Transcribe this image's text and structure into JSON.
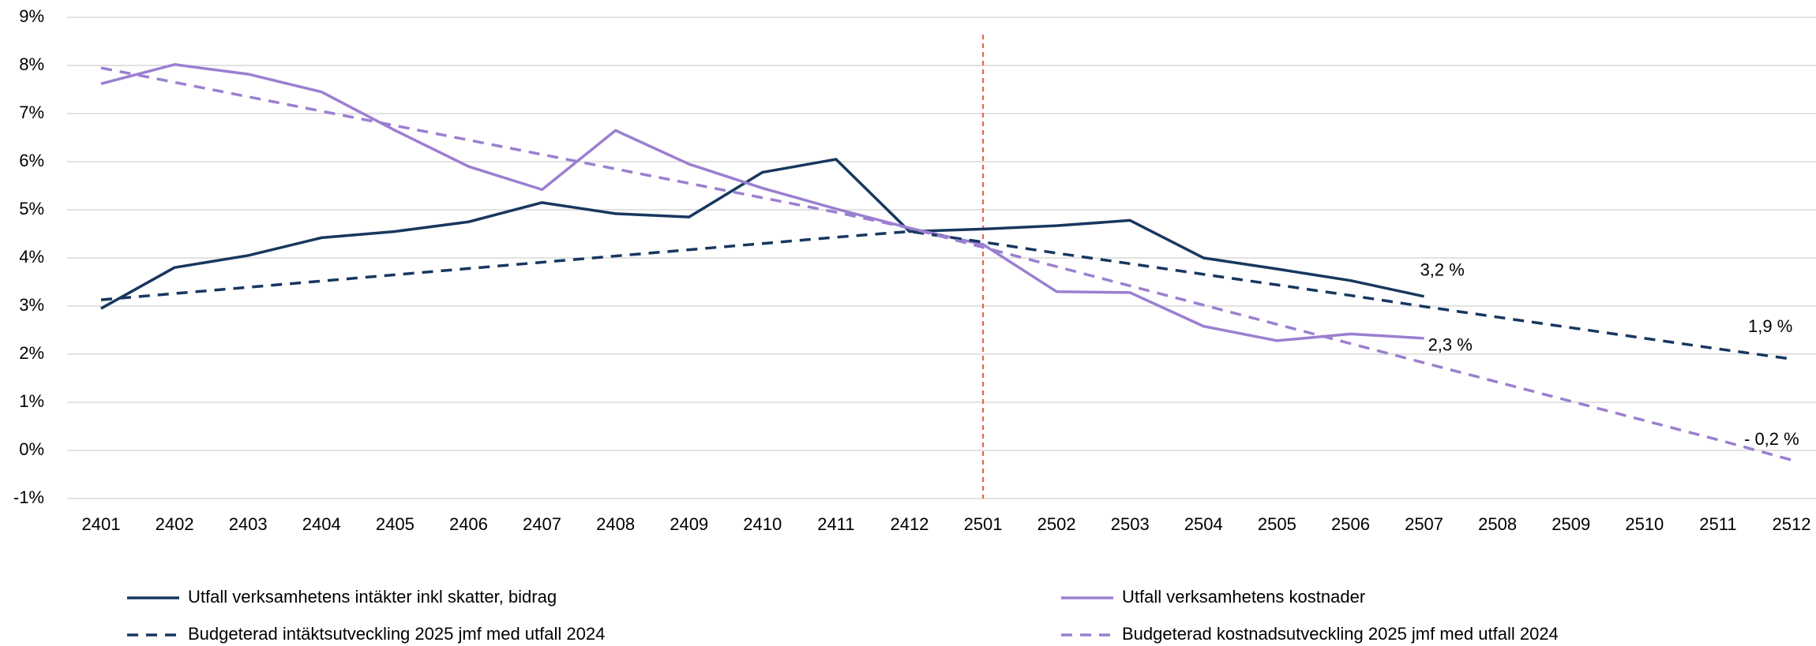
{
  "chart_data": {
    "type": "line",
    "categories": [
      "2401",
      "2402",
      "2403",
      "2404",
      "2405",
      "2406",
      "2407",
      "2408",
      "2409",
      "2410",
      "2411",
      "2412",
      "2501",
      "2502",
      "2503",
      "2504",
      "2505",
      "2506",
      "2507",
      "2508",
      "2509",
      "2510",
      "2511",
      "2512"
    ],
    "series": [
      {
        "name": "Utfall verksamhetens intäkter inkl skatter, bidrag",
        "color": "#17375e",
        "dashed": false,
        "values": [
          2.95,
          3.8,
          4.05,
          4.42,
          4.55,
          4.75,
          5.15,
          4.92,
          4.85,
          5.78,
          6.05,
          4.55,
          4.6,
          4.67,
          4.78,
          4.0,
          3.77,
          3.53,
          3.2,
          null,
          null,
          null,
          null,
          null
        ],
        "value_labels": [
          null,
          null,
          null,
          null,
          null,
          null,
          null,
          null,
          null,
          null,
          null,
          null,
          null,
          null,
          null,
          null,
          null,
          null,
          "3,2 %",
          null,
          null,
          null,
          null,
          null
        ]
      },
      {
        "name": "Utfall verksamhetens kostnader",
        "color": "#9b7fd0",
        "dashed": false,
        "values": [
          7.62,
          8.02,
          7.82,
          7.45,
          6.65,
          5.9,
          5.42,
          6.65,
          5.95,
          5.45,
          5.02,
          4.62,
          4.28,
          3.3,
          3.28,
          2.58,
          2.28,
          2.42,
          2.33,
          null,
          null,
          null,
          null,
          null
        ],
        "value_labels": [
          null,
          null,
          null,
          null,
          null,
          null,
          null,
          null,
          null,
          null,
          null,
          null,
          null,
          null,
          null,
          null,
          null,
          null,
          "2,3 %",
          null,
          null,
          null,
          null,
          null
        ]
      },
      {
        "name": "Budgeterad intäktsutveckling 2025 jmf med utfall 2024",
        "color": "#17375e",
        "dashed": true,
        "values": [
          3.13,
          3.26,
          3.39,
          3.52,
          3.65,
          3.78,
          3.91,
          4.04,
          4.17,
          4.3,
          4.43,
          4.55,
          4.33,
          4.1,
          3.88,
          3.66,
          3.44,
          3.22,
          2.99,
          2.77,
          2.55,
          2.33,
          2.11,
          1.9
        ],
        "value_labels": [
          null,
          null,
          null,
          null,
          null,
          null,
          null,
          null,
          null,
          null,
          null,
          null,
          null,
          null,
          null,
          null,
          null,
          null,
          null,
          null,
          null,
          null,
          null,
          "1,9 %"
        ]
      },
      {
        "name": "Budgeterad kostnadsutveckling 2025 jmf med utfall 2024",
        "color": "#9b7fd0",
        "dashed": true,
        "values": [
          7.95,
          7.65,
          7.35,
          7.05,
          6.75,
          6.45,
          6.15,
          5.85,
          5.55,
          5.25,
          4.95,
          4.62,
          4.22,
          3.82,
          3.42,
          3.02,
          2.62,
          2.22,
          1.82,
          1.42,
          1.02,
          0.62,
          0.22,
          -0.2
        ],
        "value_labels": [
          null,
          null,
          null,
          null,
          null,
          null,
          null,
          null,
          null,
          null,
          null,
          null,
          null,
          null,
          null,
          null,
          null,
          null,
          null,
          null,
          null,
          null,
          null,
          "- 0,2  %"
        ]
      }
    ],
    "ylim": [
      -1,
      9
    ],
    "yticks": [
      {
        "value": -1,
        "label": "-1%"
      },
      {
        "value": 0,
        "label": "0%"
      },
      {
        "value": 1,
        "label": "1%"
      },
      {
        "value": 2,
        "label": "2%"
      },
      {
        "value": 3,
        "label": "3%"
      },
      {
        "value": 4,
        "label": "4%"
      },
      {
        "value": 5,
        "label": "5%"
      },
      {
        "value": 6,
        "label": "6%"
      },
      {
        "value": 7,
        "label": "7%"
      },
      {
        "value": 8,
        "label": "8%"
      },
      {
        "value": 9,
        "label": "9%"
      }
    ],
    "grid": true,
    "vline_category": "2501",
    "vline_color": "#e8603c"
  }
}
